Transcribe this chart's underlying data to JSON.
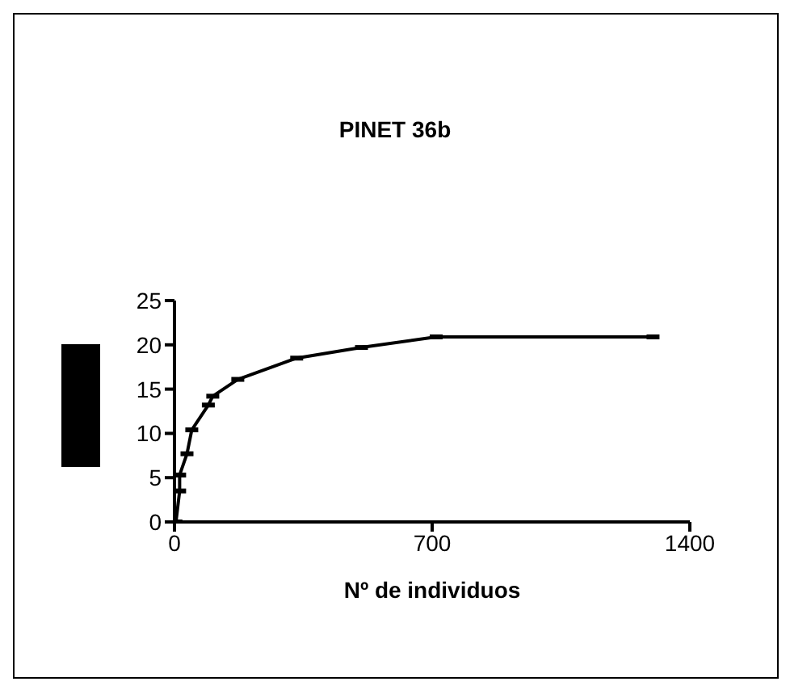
{
  "chart_data": {
    "type": "line",
    "title": "PINET 36b",
    "xlabel": "Nº de individuos",
    "x": [
      4,
      14,
      14,
      34,
      47,
      92,
      104,
      172,
      332,
      508,
      711,
      1300
    ],
    "series": [
      {
        "color": "#000000",
        "values": [
          0,
          3.5,
          5.3,
          7.7,
          10.4,
          13.2,
          14.2,
          16.1,
          18.5,
          19.7,
          20.9,
          20.9
        ]
      }
    ],
    "xlim": [
      0,
      1400
    ],
    "xticks": [
      0,
      700,
      1400
    ],
    "ylim": [
      0,
      25
    ],
    "yticks": [
      0,
      5,
      10,
      15,
      20,
      25
    ],
    "marker": "square",
    "grid": false,
    "legend": false
  }
}
